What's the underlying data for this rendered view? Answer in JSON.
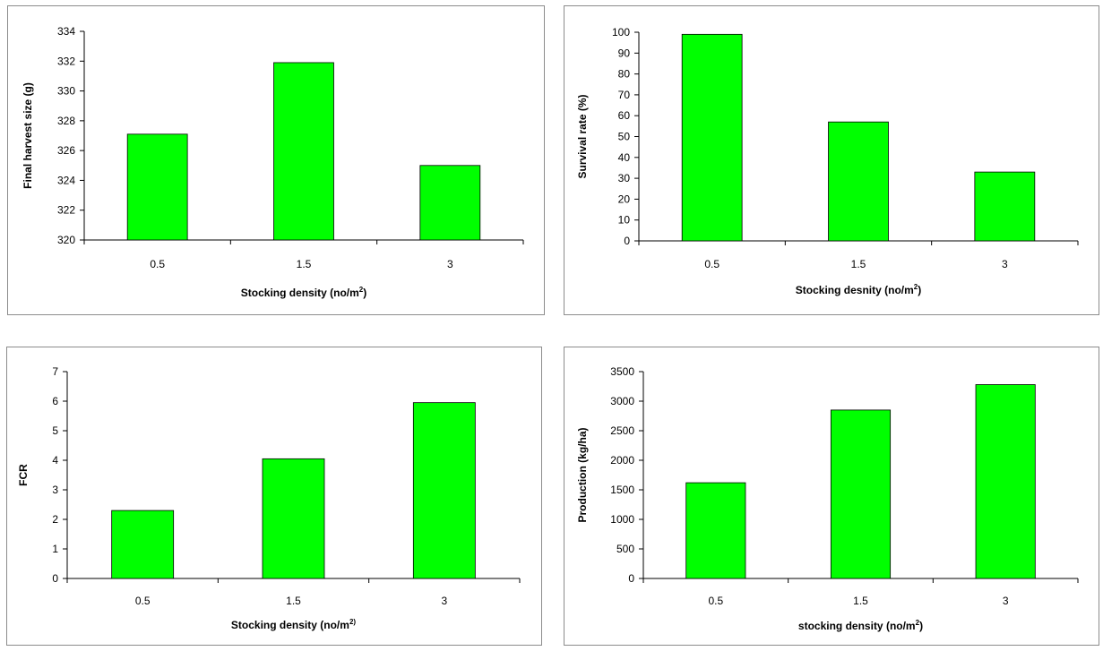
{
  "chart_data": [
    {
      "type": "bar",
      "categories": [
        "0.5",
        "1.5",
        "3"
      ],
      "values": [
        327.1,
        331.9,
        325.0
      ],
      "xlabel": "Stocking density (no/m",
      "xlabel_sup": "2",
      "xlabel_tail": ")",
      "ylabel": "Final harvest size (g)",
      "ylim": [
        320,
        334
      ],
      "yticks": [
        320,
        322,
        324,
        326,
        328,
        330,
        332,
        334
      ],
      "bar_color": "#00ff00",
      "grid": false,
      "legend": "none"
    },
    {
      "type": "bar",
      "categories": [
        "0.5",
        "1.5",
        "3"
      ],
      "values": [
        99,
        57,
        33
      ],
      "xlabel": "Stocking desnity (no/m",
      "xlabel_sup": "2",
      "xlabel_tail": ")",
      "ylabel": "Survival rate (%)",
      "ylim": [
        0,
        100
      ],
      "yticks": [
        0,
        10,
        20,
        30,
        40,
        50,
        60,
        70,
        80,
        90,
        100
      ],
      "bar_color": "#00ff00",
      "grid": false,
      "legend": "none"
    },
    {
      "type": "bar",
      "categories": [
        "0.5",
        "1.5",
        "3"
      ],
      "values": [
        2.3,
        4.05,
        5.95
      ],
      "xlabel": "Stocking density (no/m",
      "xlabel_sup": "2)",
      "xlabel_tail": "",
      "ylabel": "FCR",
      "ylim": [
        0,
        7
      ],
      "yticks": [
        0,
        1,
        2,
        3,
        4,
        5,
        6,
        7
      ],
      "bar_color": "#00ff00",
      "grid": false,
      "legend": "none"
    },
    {
      "type": "bar",
      "categories": [
        "0.5",
        "1.5",
        "3"
      ],
      "values": [
        1620,
        2850,
        3280
      ],
      "xlabel": "stocking density (no/m",
      "xlabel_sup": "2",
      "xlabel_tail": ")",
      "ylabel": "Production (kg/ha)",
      "ylim": [
        0,
        3500
      ],
      "yticks": [
        0,
        500,
        1000,
        1500,
        2000,
        2500,
        3000,
        3500
      ],
      "bar_color": "#00ff00",
      "grid": false,
      "legend": "none"
    }
  ]
}
